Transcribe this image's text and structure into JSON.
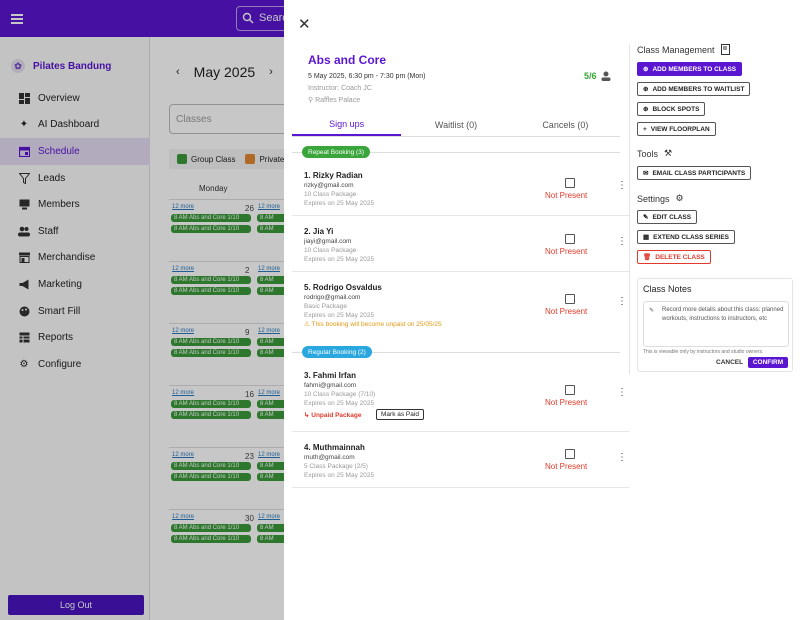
{
  "colors": {
    "brand": "#5a16d0",
    "present_red": "#e03a2a",
    "repeat_green": "#3aa53a",
    "regular_blue": "#29a8e0",
    "event_green": "#3a9a3a"
  },
  "header": {
    "search_label": "Search"
  },
  "sidebar": {
    "brand": "Pilates Bandung",
    "items": [
      {
        "label": "Overview",
        "icon": "grid-icon"
      },
      {
        "label": "AI Dashboard",
        "icon": "sparkle-icon"
      },
      {
        "label": "Schedule",
        "icon": "calendar-icon"
      },
      {
        "label": "Leads",
        "icon": "funnel-icon"
      },
      {
        "label": "Members",
        "icon": "monitor-icon"
      },
      {
        "label": "Staff",
        "icon": "people-icon"
      },
      {
        "label": "Merchandise",
        "icon": "store-icon"
      },
      {
        "label": "Marketing",
        "icon": "megaphone-icon"
      },
      {
        "label": "Smart Fill",
        "icon": "palette-icon"
      },
      {
        "label": "Reports",
        "icon": "table-icon"
      },
      {
        "label": "Configure",
        "icon": "gear-icon"
      }
    ],
    "logout": "Log Out"
  },
  "calendar": {
    "month": "May 2025",
    "classes_placeholder": "Classes",
    "legend": [
      "Group Class",
      "Private"
    ],
    "day_header": "Monday",
    "more": "12 more",
    "event": "8 AM  Abs and Core 1/10",
    "event_short": "8 AM",
    "weeks": [
      "26",
      "2",
      "9",
      "16",
      "23",
      "30"
    ]
  },
  "class": {
    "title": "Abs and Core",
    "datetime": "5 May 2025, 6:30 pm - 7:30 pm (Mon)",
    "instructor": "Instructor: Coach JC",
    "location": "Raffles Palace",
    "capacity": "5/6"
  },
  "tabs": [
    "Sign ups",
    "Waitlist (0)",
    "Cancels (0)"
  ],
  "sections": {
    "repeat": "Repeat Booking (3)",
    "regular": "Regular Booking (2)"
  },
  "members": [
    {
      "name": "1. Rizky Radian",
      "email": "rizky@gmail.com",
      "package": "10 Class Package",
      "expires": "Expires on 25 May 2025",
      "status": "Not Present"
    },
    {
      "name": "2. Jia Yi",
      "email": "jiayi@gmail.com",
      "package": "10 Class Package",
      "expires": "Expires on 25 May 2025",
      "status": "Not Present"
    },
    {
      "name": "5. Rodrigo Osvaldus",
      "email": "rodrigo@gmail.com",
      "package": "Basic Package",
      "expires": "Expires on 25 May 2025",
      "warning": "This booking will become unpaid on 25/05/25",
      "status": "Not Present"
    },
    {
      "name": "3. Fahmi Irfan",
      "email": "fahmi@gmail.com",
      "package": "10 Class Package (7/10)",
      "expires": "Expires on 25 May 2025",
      "unpaid": "Unpaid Package",
      "mark_paid": "Mark as Paid",
      "status": "Not Present"
    },
    {
      "name": "4. Muthmainnah",
      "email": "muth@gmail.com",
      "package": "5 Class Package (2/5)",
      "expires": "Expires on 25 May 2025",
      "status": "Not Present"
    }
  ],
  "management": {
    "title": "Class Management",
    "add_members": "ADD MEMBERS TO CLASS",
    "add_waitlist": "ADD MEMBERS TO WAITLIST",
    "block_spots": "BLOCK SPOTS",
    "view_floorplan": "VIEW FLOORPLAN"
  },
  "tools": {
    "title": "Tools",
    "email": "EMAIL CLASS PARTICIPANTS"
  },
  "settings": {
    "title": "Settings",
    "edit": "EDIT CLASS",
    "extend": "EXTEND CLASS SERIES",
    "delete": "DELETE CLASS"
  },
  "notes": {
    "title": "Class Notes",
    "placeholder": "Record more details about this class: planned workouts, instructions to instructors, etc",
    "hint": "This is viewable only by instructors and studio owners.",
    "cancel": "CANCEL",
    "confirm": "CONFIRM"
  }
}
